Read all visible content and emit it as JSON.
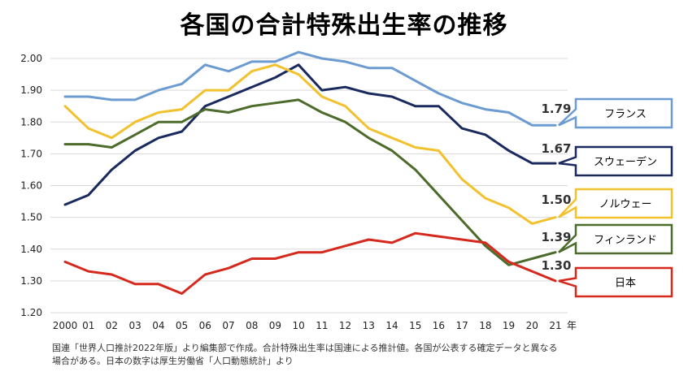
{
  "chart_data": {
    "type": "line",
    "title": "各国の合計特殊出生率の推移",
    "xlabel": "年",
    "ylabel": "",
    "ylim": [
      1.2,
      2.0
    ],
    "yticks": [
      "1.20",
      "1.30",
      "1.40",
      "1.50",
      "1.60",
      "1.70",
      "1.80",
      "1.90",
      "2.00"
    ],
    "x": [
      "2000",
      "01",
      "02",
      "03",
      "04",
      "05",
      "06",
      "07",
      "08",
      "09",
      "10",
      "11",
      "12",
      "13",
      "14",
      "15",
      "16",
      "17",
      "18",
      "19",
      "20",
      "21"
    ],
    "grid": true,
    "legend": "right",
    "series": [
      {
        "name": "フランス",
        "color": "#6c9bd2",
        "end_label": "1.79",
        "values": [
          1.88,
          1.88,
          1.87,
          1.87,
          1.9,
          1.92,
          1.98,
          1.96,
          1.99,
          1.99,
          2.02,
          2.0,
          1.99,
          1.97,
          1.97,
          1.93,
          1.89,
          1.86,
          1.84,
          1.83,
          1.79,
          1.79
        ]
      },
      {
        "name": "スウェーデン",
        "color": "#1a2a5e",
        "end_label": "1.67",
        "values": [
          1.54,
          1.57,
          1.65,
          1.71,
          1.75,
          1.77,
          1.85,
          1.88,
          1.91,
          1.94,
          1.98,
          1.9,
          1.91,
          1.89,
          1.88,
          1.85,
          1.85,
          1.78,
          1.76,
          1.71,
          1.67,
          1.67
        ]
      },
      {
        "name": "ノルウェー",
        "color": "#f2c12e",
        "end_label": "1.50",
        "values": [
          1.85,
          1.78,
          1.75,
          1.8,
          1.83,
          1.84,
          1.9,
          1.9,
          1.96,
          1.98,
          1.95,
          1.88,
          1.85,
          1.78,
          1.75,
          1.72,
          1.71,
          1.62,
          1.56,
          1.53,
          1.48,
          1.5
        ]
      },
      {
        "name": "フィンランド",
        "color": "#4d6b2b",
        "end_label": "1.39",
        "values": [
          1.73,
          1.73,
          1.72,
          1.76,
          1.8,
          1.8,
          1.84,
          1.83,
          1.85,
          1.86,
          1.87,
          1.83,
          1.8,
          1.75,
          1.71,
          1.65,
          1.57,
          1.49,
          1.41,
          1.35,
          1.37,
          1.39
        ]
      },
      {
        "name": "日本",
        "color": "#d6291d",
        "end_label": "1.30",
        "values": [
          1.36,
          1.33,
          1.32,
          1.29,
          1.29,
          1.26,
          1.32,
          1.34,
          1.37,
          1.37,
          1.39,
          1.39,
          1.41,
          1.43,
          1.42,
          1.45,
          1.44,
          1.43,
          1.42,
          1.36,
          1.33,
          1.3
        ]
      }
    ]
  },
  "notes": {
    "line1": "国連「世界人口推計2022年版」より編集部で作成。合計特殊出生率は国連による推計値。各国が公表する確定データと異なる",
    "line2": "場合がある。日本の数字は厚生労働省「人口動態統計」より"
  }
}
